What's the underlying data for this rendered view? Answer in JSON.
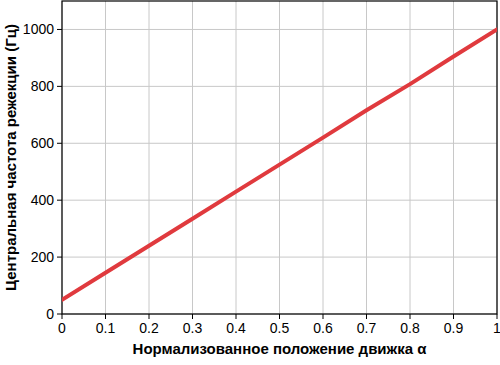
{
  "chart_data": {
    "type": "line",
    "x_label": "Нормализованное положение движка α",
    "y_label": "Центральная частота режекции (Гц)",
    "x": [
      0,
      0.1,
      0.2,
      0.3,
      0.4,
      0.5,
      0.6,
      0.7,
      0.8,
      0.9,
      1
    ],
    "values": [
      50,
      145,
      240,
      335,
      430,
      525,
      620,
      716,
      808,
      905,
      1000
    ],
    "color": "#e03a3e",
    "xlim": [
      0,
      1
    ],
    "xticks": [
      0,
      0.1,
      0.2,
      0.3,
      0.4,
      0.5,
      0.6,
      0.7,
      0.8,
      0.9,
      1
    ],
    "ylim": [
      0,
      1100
    ],
    "yticks": [
      0,
      200,
      400,
      600,
      800,
      1000
    ],
    "grid": true
  }
}
